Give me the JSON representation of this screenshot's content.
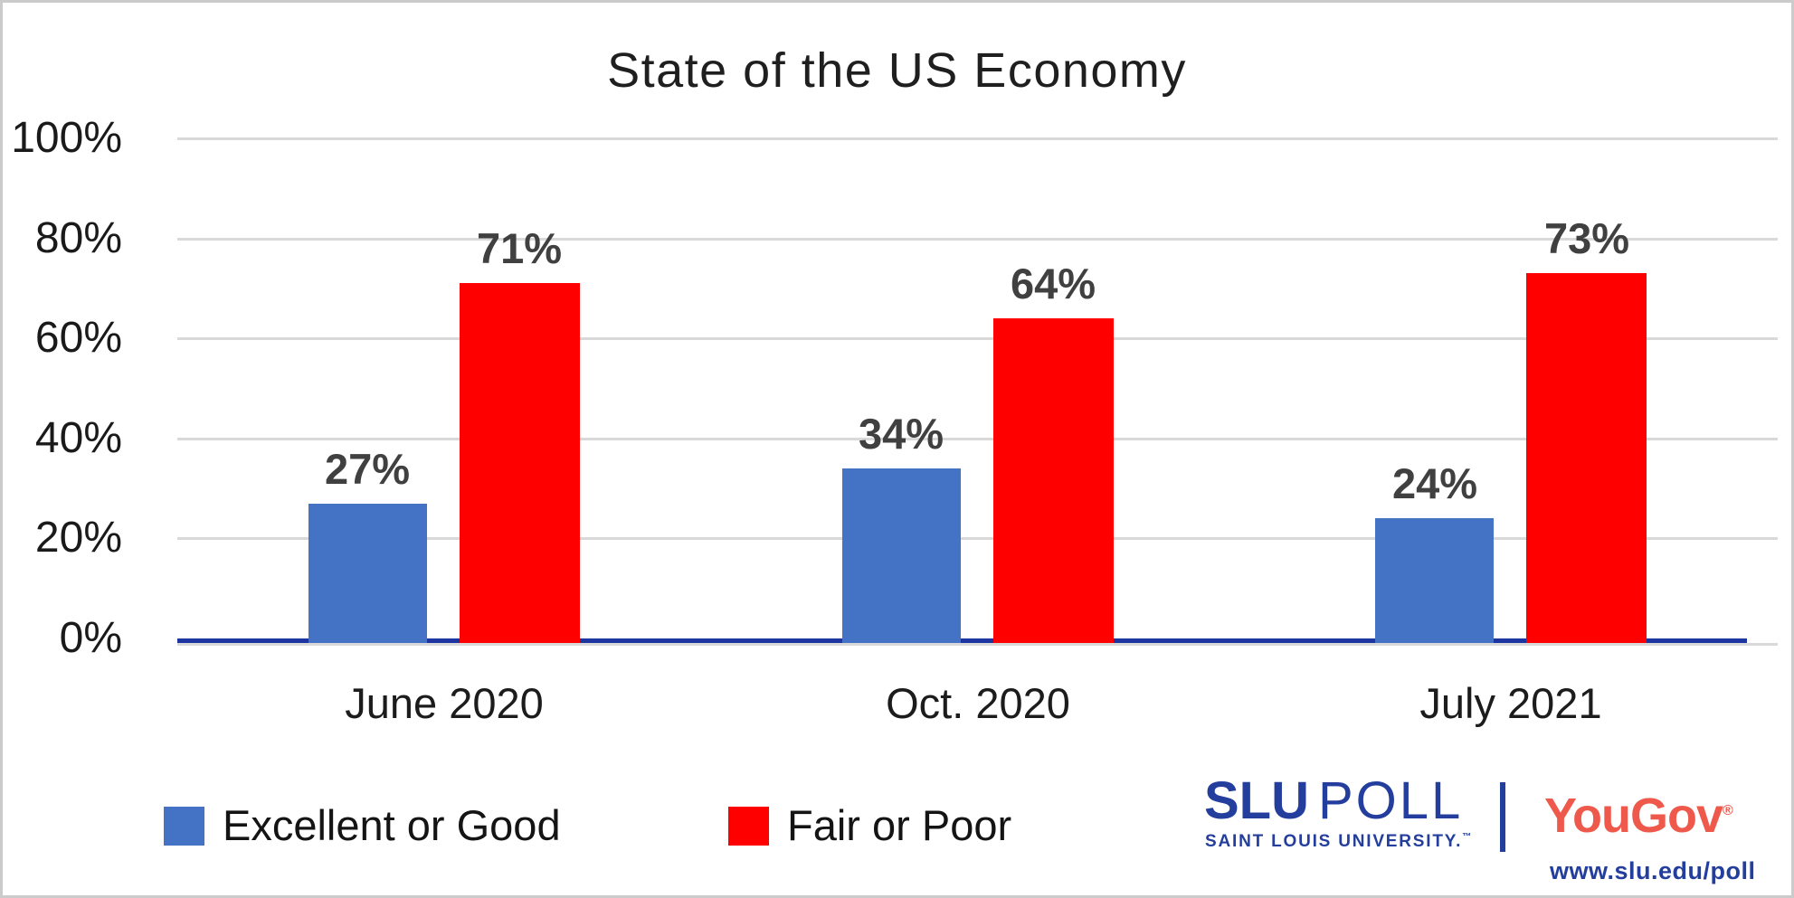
{
  "chart_data": {
    "type": "bar",
    "title": "State of the US Economy",
    "categories": [
      "June 2020",
      "Oct. 2020",
      "July 2021"
    ],
    "series": [
      {
        "name": "Excellent or Good",
        "color": "#4472C4",
        "values": [
          27,
          34,
          24
        ]
      },
      {
        "name": "Fair or Poor",
        "color": "#FF0000",
        "values": [
          71,
          64,
          73
        ]
      }
    ],
    "value_suffix": "%",
    "data_labels": true,
    "y_axis": {
      "min": 0,
      "max": 100,
      "step": 20,
      "tick_labels": [
        "100%",
        "80%",
        "60%",
        "40%",
        "20%",
        "0%"
      ]
    },
    "grid": true,
    "legend_position": "bottom-left"
  },
  "colors": {
    "bar_blue": "#4472C4",
    "bar_red": "#FF0000",
    "axis_line": "#1D35A0",
    "gridline": "#D9D9D9",
    "value_label": "#404040",
    "slu_blue": "#233E9D",
    "yougov_red": "#EF594C",
    "page_border": "#CBCBCB"
  },
  "branding": {
    "slu_bold": "SLU",
    "slu_light": "POLL",
    "slu_sub": "SAINT LOUIS UNIVERSITY.",
    "slu_tm": "™",
    "yougov": "YouGov",
    "yougov_reg": "®",
    "url": "www.slu.edu/poll"
  }
}
